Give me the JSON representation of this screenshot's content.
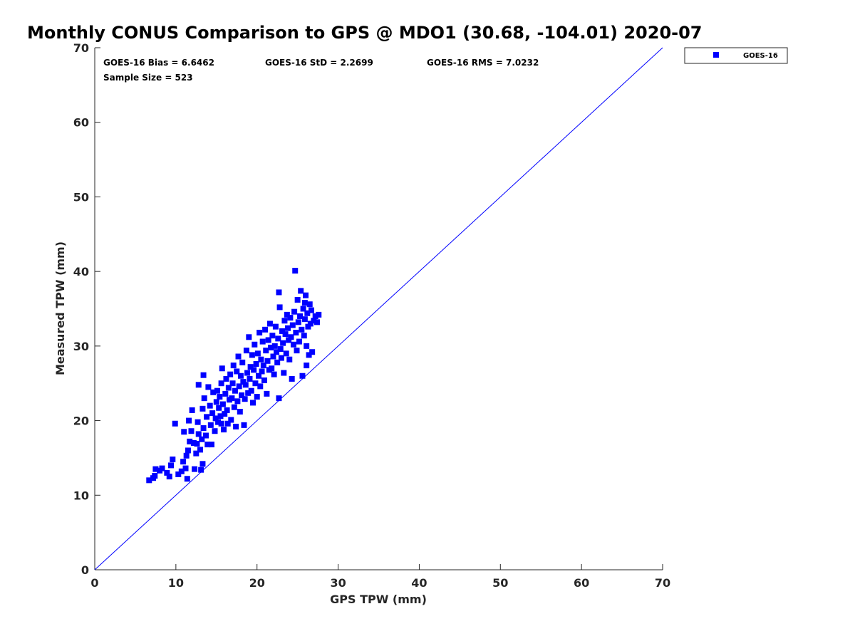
{
  "chart_data": {
    "type": "scatter",
    "title": "Monthly CONUS Comparison to GPS @ MDO1 (30.68, -104.01) 2020-07",
    "xlabel": "GPS TPW (mm)",
    "ylabel": "Measured TPW (mm)",
    "xlim": [
      0,
      70
    ],
    "ylim": [
      0,
      70
    ],
    "xticks": [
      "0",
      "10",
      "20",
      "30",
      "40",
      "50",
      "60",
      "70"
    ],
    "yticks": [
      "0",
      "10",
      "20",
      "30",
      "40",
      "50",
      "60",
      "70"
    ],
    "grid": false,
    "legend_position": "outside-top-right",
    "stats": {
      "bias": "GOES-16 Bias = 6.6462",
      "std": "GOES-16 StD = 2.2699",
      "rms": "GOES-16 RMS = 7.0232",
      "sample": "Sample Size = 523"
    },
    "reference_line": {
      "from": [
        0,
        0
      ],
      "to": [
        70,
        70
      ],
      "color": "#0000ff"
    },
    "series": [
      {
        "name": "GOES-16",
        "color": "#0000ff",
        "marker": "square",
        "points": [
          [
            6.7,
            12.0
          ],
          [
            7.2,
            12.3
          ],
          [
            7.5,
            13.5
          ],
          [
            7.4,
            12.6
          ],
          [
            8.0,
            13.3
          ],
          [
            8.3,
            13.6
          ],
          [
            8.9,
            13.0
          ],
          [
            9.2,
            12.5
          ],
          [
            9.4,
            14.0
          ],
          [
            9.6,
            14.8
          ],
          [
            9.9,
            19.6
          ],
          [
            10.3,
            12.8
          ],
          [
            10.7,
            13.2
          ],
          [
            10.9,
            14.5
          ],
          [
            11.0,
            18.5
          ],
          [
            11.2,
            13.6
          ],
          [
            11.4,
            12.2
          ],
          [
            11.3,
            15.3
          ],
          [
            11.5,
            16.0
          ],
          [
            11.7,
            17.2
          ],
          [
            11.6,
            20.0
          ],
          [
            11.9,
            18.6
          ],
          [
            12.0,
            21.4
          ],
          [
            12.2,
            17.0
          ],
          [
            12.3,
            13.5
          ],
          [
            12.5,
            15.6
          ],
          [
            12.6,
            16.9
          ],
          [
            12.8,
            18.2
          ],
          [
            12.7,
            19.8
          ],
          [
            12.8,
            24.8
          ],
          [
            13.0,
            16.1
          ],
          [
            13.1,
            13.4
          ],
          [
            13.3,
            14.2
          ],
          [
            13.2,
            17.5
          ],
          [
            13.4,
            19.0
          ],
          [
            13.3,
            21.6
          ],
          [
            13.5,
            23.0
          ],
          [
            13.4,
            26.1
          ],
          [
            13.7,
            18.0
          ],
          [
            13.8,
            20.5
          ],
          [
            13.9,
            16.8
          ],
          [
            14.0,
            24.5
          ],
          [
            14.2,
            22.0
          ],
          [
            14.3,
            19.4
          ],
          [
            14.5,
            21.0
          ],
          [
            14.6,
            23.8
          ],
          [
            14.8,
            18.6
          ],
          [
            14.9,
            20.3
          ],
          [
            15.0,
            22.5
          ],
          [
            15.1,
            24.0
          ],
          [
            15.2,
            19.8
          ],
          [
            15.3,
            21.7
          ],
          [
            15.4,
            23.2
          ],
          [
            15.5,
            20.6
          ],
          [
            15.6,
            25.0
          ],
          [
            15.7,
            27.0
          ],
          [
            15.8,
            22.2
          ],
          [
            15.9,
            18.8
          ],
          [
            16.0,
            20.9
          ],
          [
            16.1,
            23.6
          ],
          [
            16.2,
            25.6
          ],
          [
            16.3,
            21.4
          ],
          [
            16.4,
            19.6
          ],
          [
            16.5,
            24.4
          ],
          [
            16.6,
            22.8
          ],
          [
            16.7,
            26.2
          ],
          [
            16.8,
            20.1
          ],
          [
            16.9,
            23.0
          ],
          [
            17.0,
            25.0
          ],
          [
            17.1,
            27.4
          ],
          [
            17.2,
            21.8
          ],
          [
            17.3,
            24.0
          ],
          [
            17.4,
            19.2
          ],
          [
            17.5,
            26.6
          ],
          [
            17.6,
            22.6
          ],
          [
            17.7,
            28.6
          ],
          [
            17.8,
            24.6
          ],
          [
            17.9,
            21.2
          ],
          [
            18.0,
            26.0
          ],
          [
            18.1,
            23.4
          ],
          [
            18.2,
            27.8
          ],
          [
            18.3,
            25.2
          ],
          [
            18.4,
            19.4
          ],
          [
            18.5,
            22.9
          ],
          [
            18.6,
            24.8
          ],
          [
            18.7,
            29.4
          ],
          [
            18.8,
            26.4
          ],
          [
            18.9,
            23.7
          ],
          [
            19.0,
            31.2
          ],
          [
            19.1,
            25.6
          ],
          [
            19.2,
            27.2
          ],
          [
            19.3,
            24.0
          ],
          [
            19.4,
            28.8
          ],
          [
            19.5,
            22.4
          ],
          [
            19.6,
            26.8
          ],
          [
            19.7,
            30.2
          ],
          [
            19.8,
            25.0
          ],
          [
            19.9,
            27.6
          ],
          [
            20.0,
            23.2
          ],
          [
            20.1,
            29.0
          ],
          [
            20.2,
            26.0
          ],
          [
            20.3,
            31.8
          ],
          [
            20.4,
            24.6
          ],
          [
            20.5,
            28.2
          ],
          [
            20.6,
            26.6
          ],
          [
            20.7,
            30.6
          ],
          [
            20.8,
            27.4
          ],
          [
            20.9,
            25.4
          ],
          [
            21.0,
            32.2
          ],
          [
            21.1,
            29.4
          ],
          [
            21.2,
            23.6
          ],
          [
            21.3,
            28.0
          ],
          [
            21.4,
            30.8
          ],
          [
            21.5,
            26.8
          ],
          [
            21.6,
            33.0
          ],
          [
            21.7,
            29.8
          ],
          [
            21.8,
            27.0
          ],
          [
            21.9,
            31.4
          ],
          [
            22.0,
            28.6
          ],
          [
            22.1,
            26.2
          ],
          [
            22.2,
            30.0
          ],
          [
            22.3,
            32.6
          ],
          [
            22.4,
            29.2
          ],
          [
            22.5,
            27.8
          ],
          [
            22.6,
            31.0
          ],
          [
            22.7,
            23.0
          ],
          [
            22.7,
            37.2
          ],
          [
            22.8,
            35.2
          ],
          [
            22.9,
            29.6
          ],
          [
            23.0,
            28.4
          ],
          [
            23.1,
            32.0
          ],
          [
            23.2,
            30.4
          ],
          [
            23.3,
            26.4
          ],
          [
            23.4,
            33.4
          ],
          [
            23.5,
            31.6
          ],
          [
            23.6,
            29.0
          ],
          [
            23.7,
            34.2
          ],
          [
            23.8,
            32.4
          ],
          [
            23.9,
            30.8
          ],
          [
            24.0,
            28.2
          ],
          [
            24.1,
            33.8
          ],
          [
            24.2,
            31.2
          ],
          [
            24.3,
            25.6
          ],
          [
            24.4,
            32.8
          ],
          [
            24.5,
            30.2
          ],
          [
            24.6,
            34.6
          ],
          [
            24.7,
            40.1
          ],
          [
            24.8,
            31.8
          ],
          [
            24.9,
            29.4
          ],
          [
            25.0,
            36.2
          ],
          [
            25.1,
            33.2
          ],
          [
            25.2,
            30.6
          ],
          [
            25.3,
            34.0
          ],
          [
            25.4,
            37.4
          ],
          [
            25.5,
            32.2
          ],
          [
            25.6,
            26.0
          ],
          [
            25.7,
            35.0
          ],
          [
            25.8,
            31.4
          ],
          [
            25.9,
            33.6
          ],
          [
            26.0,
            36.8
          ],
          [
            26.1,
            30.0
          ],
          [
            26.2,
            34.4
          ],
          [
            26.3,
            32.6
          ],
          [
            26.4,
            28.8
          ],
          [
            26.5,
            35.6
          ],
          [
            26.6,
            33.0
          ],
          [
            26.7,
            34.8
          ],
          [
            26.8,
            29.2
          ],
          [
            27.0,
            33.4
          ],
          [
            27.2,
            34.0
          ],
          [
            27.4,
            33.2
          ],
          [
            27.6,
            34.2
          ],
          [
            25.9,
            35.8
          ],
          [
            26.1,
            27.4
          ],
          [
            14.4,
            16.8
          ],
          [
            15.6,
            19.6
          ]
        ]
      }
    ]
  }
}
